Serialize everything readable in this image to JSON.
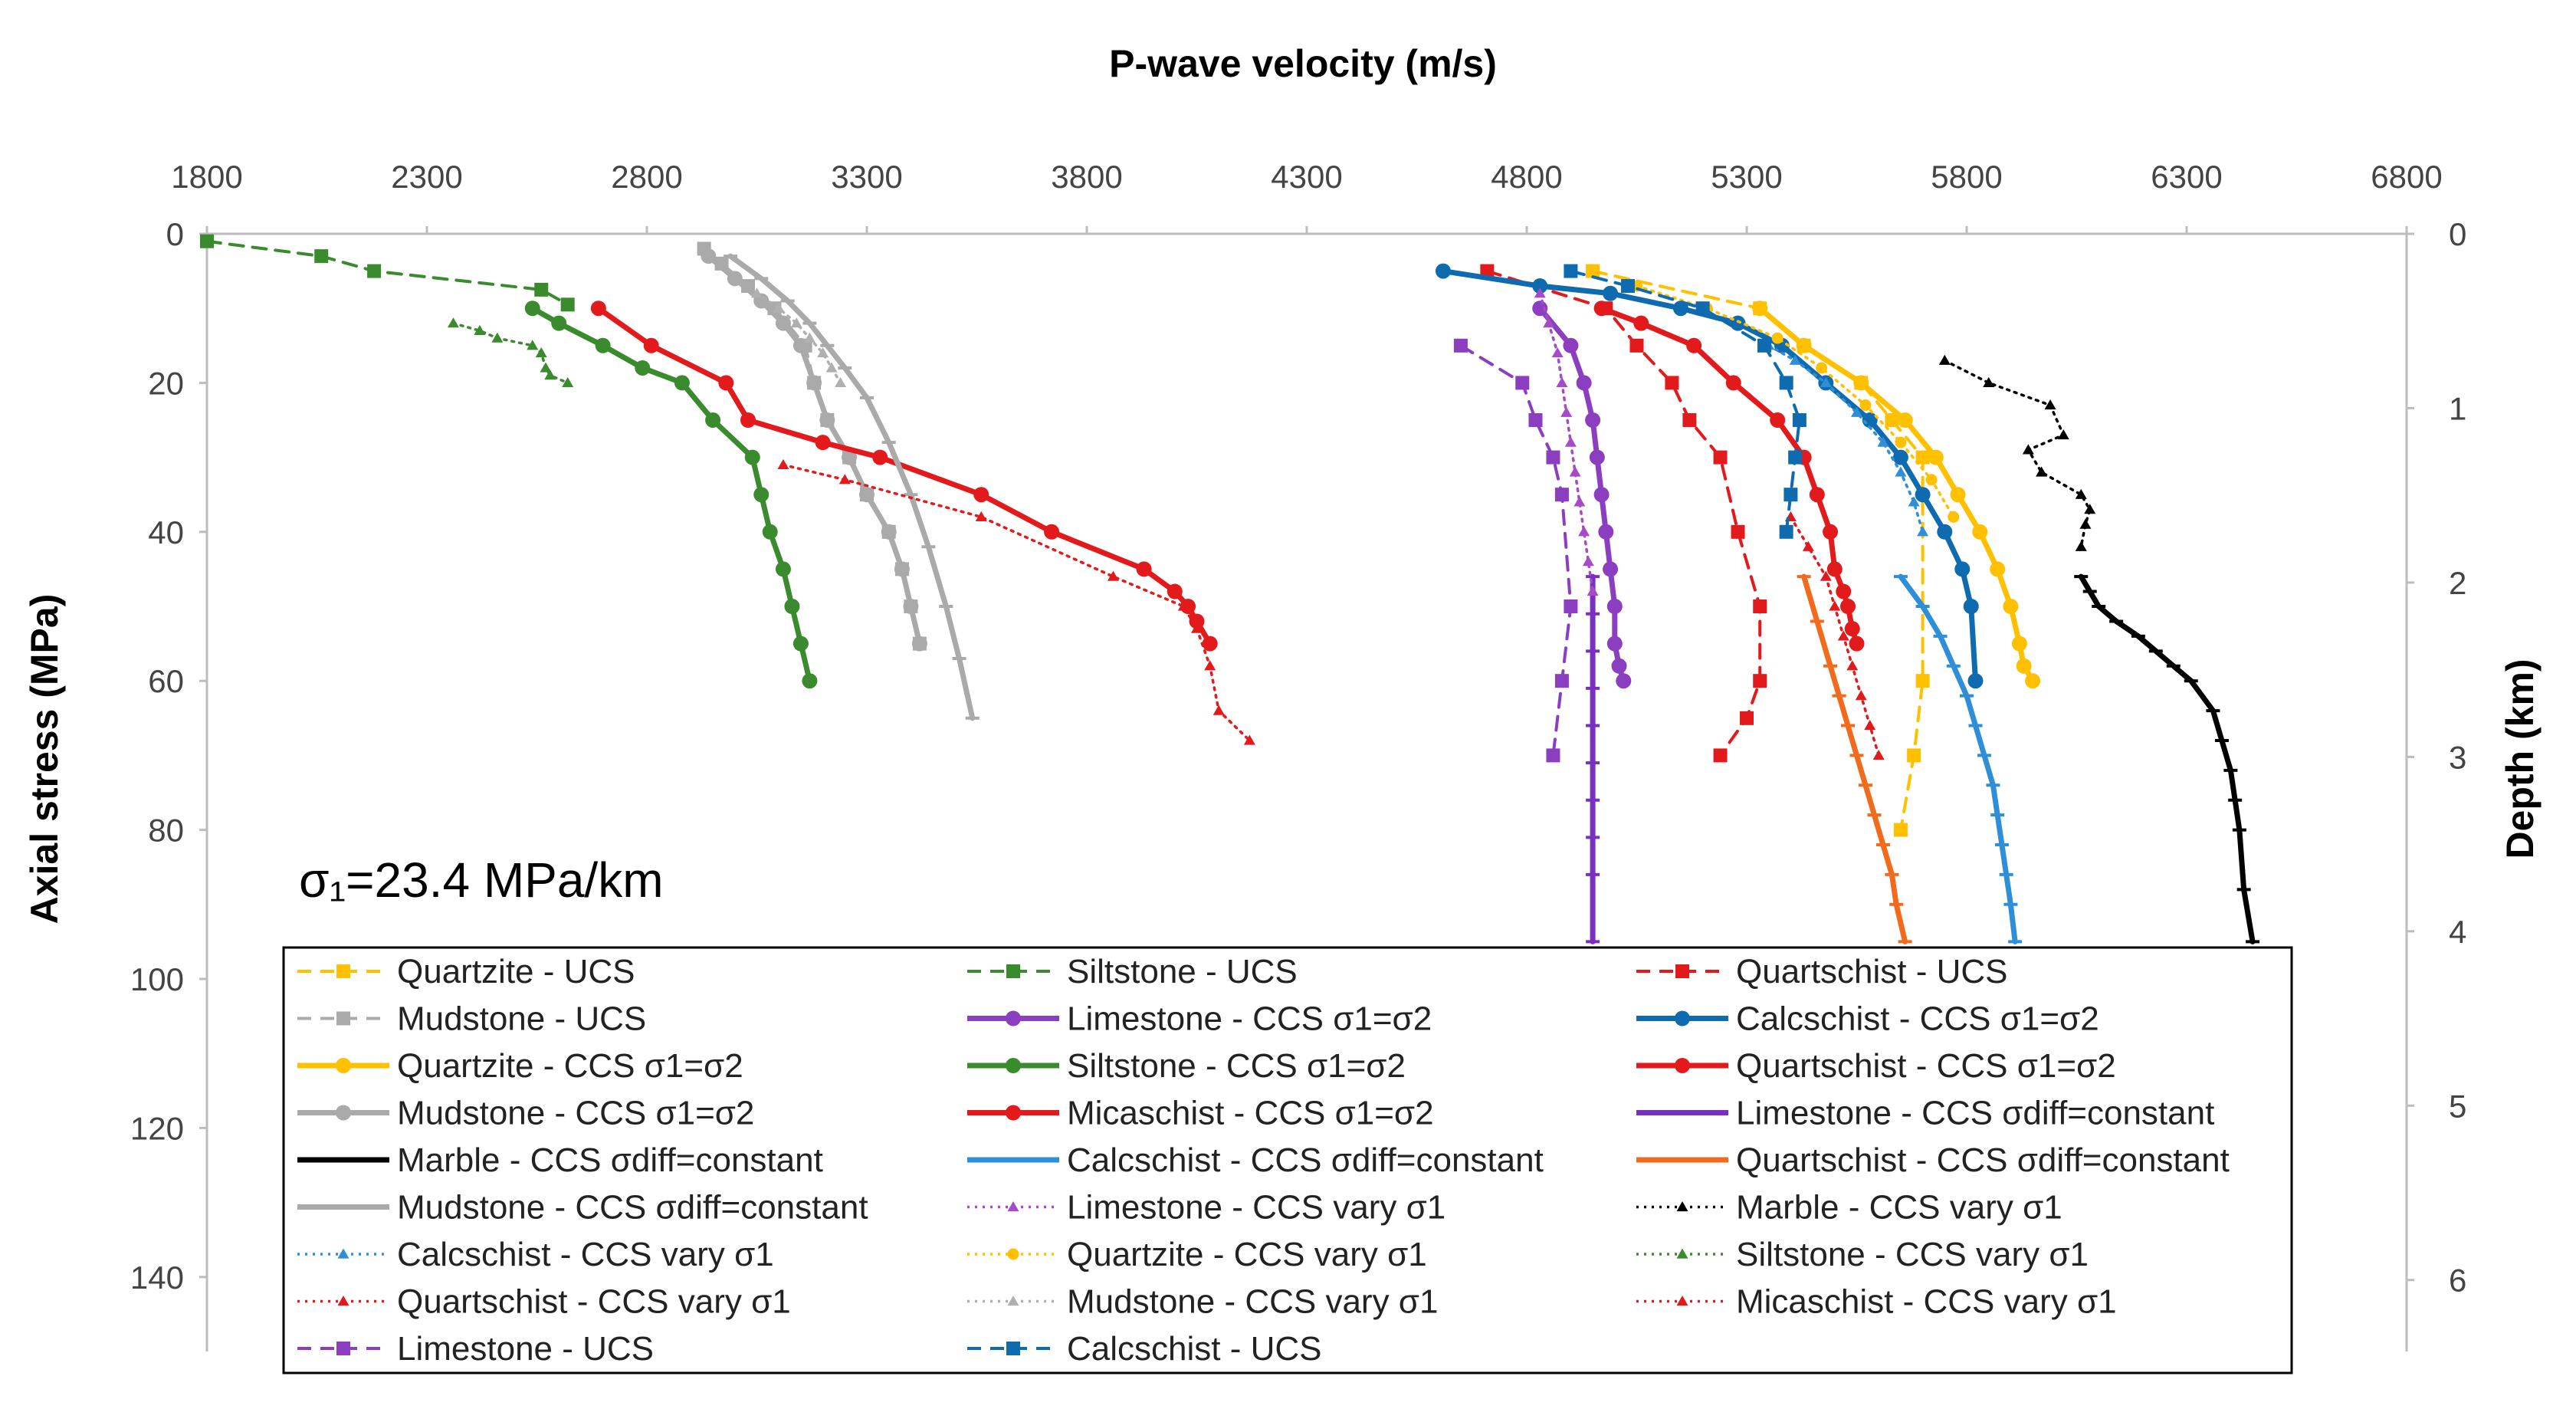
{
  "chart_data": {
    "type": "line",
    "title": "",
    "xlabel": "P-wave velocity (m/s)",
    "ylabel": "Axial stress (MPa)",
    "y2label": "Depth (km)",
    "xlim": [
      1800,
      6800
    ],
    "ylim": [
      0,
      150
    ],
    "y2lim": [
      0,
      6.41
    ],
    "x_axis_position": "top",
    "y_inverted": true,
    "grid": false,
    "x_ticks": [
      1800,
      2300,
      2800,
      3300,
      3800,
      4300,
      4800,
      5300,
      5800,
      6300,
      6800
    ],
    "y_ticks": [
      0,
      20,
      40,
      60,
      80,
      100,
      120,
      140
    ],
    "y2_ticks": [
      0,
      1,
      2,
      3,
      4,
      5,
      6
    ],
    "x_tick_labels": [
      "1800",
      "2300",
      "2800",
      "3300",
      "3800",
      "4300",
      "4800",
      "5300",
      "5800",
      "6300",
      "6800"
    ],
    "y_tick_labels": [
      "0",
      "20",
      "40",
      "60",
      "80",
      "100",
      "120",
      "140"
    ],
    "y2_tick_labels": [
      "0",
      "1",
      "2",
      "3",
      "4",
      "5",
      "6"
    ],
    "annotation": "σ₁=23.4 MPa/km",
    "legend_position": "bottom-inside",
    "series": [
      {
        "name": "Quartzite - UCS",
        "color": "#FFC000",
        "line": "dashed",
        "marker": "square",
        "width": "thin",
        "x": [
          4950,
          5330,
          5430,
          5560,
          5630,
          5700,
          5700,
          5680,
          5650
        ],
        "y": [
          5,
          10,
          15,
          20,
          25,
          30,
          60,
          70,
          80
        ]
      },
      {
        "name": "Siltstone - UCS",
        "color": "#3A8A2E",
        "line": "dashed",
        "marker": "square",
        "width": "thin",
        "x": [
          1800,
          2060,
          2180,
          2560,
          2620
        ],
        "y": [
          1,
          3,
          5,
          7.5,
          9.5
        ]
      },
      {
        "name": "Quartschist - UCS",
        "color": "#E31A1C",
        "line": "dashed",
        "marker": "square",
        "width": "thin",
        "x": [
          4710,
          4980,
          5050,
          5130,
          5170,
          5240,
          5280,
          5330,
          5330,
          5300,
          5240
        ],
        "y": [
          5,
          10,
          15,
          20,
          25,
          30,
          40,
          50,
          60,
          65,
          70
        ]
      },
      {
        "name": "Mudstone - UCS",
        "color": "#AAAAAA",
        "line": "dashed",
        "marker": "square",
        "width": "thin",
        "x": [
          2930,
          2970,
          3030,
          3090,
          3160,
          3180,
          3210,
          3260,
          3300,
          3350,
          3380,
          3400,
          3420
        ],
        "y": [
          2,
          4,
          7,
          10,
          15,
          20,
          25,
          30,
          35,
          40,
          45,
          50,
          55
        ]
      },
      {
        "name": "Limestone - CCS σ1=σ2",
        "color": "#8B3EBF",
        "line": "solid",
        "marker": "circle",
        "width": "thick",
        "x": [
          4830,
          4900,
          4930,
          4950,
          4960,
          4970,
          4980,
          4990,
          5000,
          5000,
          5010,
          5020
        ],
        "y": [
          10,
          15,
          20,
          25,
          30,
          35,
          40,
          45,
          50,
          55,
          58,
          60
        ]
      },
      {
        "name": "Calcschist - CCS σ1=σ2",
        "color": "#0E6BB0",
        "line": "solid",
        "marker": "circle",
        "width": "thick",
        "x": [
          4610,
          4830,
          4990,
          5150,
          5280,
          5380,
          5480,
          5580,
          5650,
          5700,
          5750,
          5790,
          5810,
          5820
        ],
        "y": [
          5,
          7,
          8,
          10,
          12,
          15,
          20,
          25,
          30,
          35,
          40,
          45,
          50,
          60
        ]
      },
      {
        "name": "Quartzite - CCS σ1=σ2",
        "color": "#FFC000",
        "line": "solid",
        "marker": "circle",
        "width": "thick",
        "x": [
          5330,
          5430,
          5560,
          5660,
          5730,
          5780,
          5830,
          5870,
          5900,
          5920,
          5930,
          5950
        ],
        "y": [
          10,
          15,
          20,
          25,
          30,
          35,
          40,
          45,
          50,
          55,
          58,
          60
        ]
      },
      {
        "name": "Siltstone - CCS σ1=σ2",
        "color": "#3A8A2E",
        "line": "solid",
        "marker": "circle",
        "width": "thick",
        "x": [
          2540,
          2600,
          2700,
          2790,
          2880,
          2950,
          3040,
          3060,
          3080,
          3110,
          3130,
          3150,
          3170
        ],
        "y": [
          10,
          12,
          15,
          18,
          20,
          25,
          30,
          35,
          40,
          45,
          50,
          55,
          60
        ]
      },
      {
        "name": "Quartschist - CCS σ1=σ2",
        "color": "#E31A1C",
        "line": "solid",
        "marker": "circle",
        "width": "thick",
        "x": [
          4970,
          5060,
          5180,
          5270,
          5370,
          5430,
          5460,
          5490,
          5500,
          5520,
          5530,
          5540,
          5550
        ],
        "y": [
          10,
          12,
          15,
          20,
          25,
          30,
          35,
          40,
          45,
          48,
          50,
          53,
          55
        ]
      },
      {
        "name": "Mudstone - CCS σ1=σ2",
        "color": "#AAAAAA",
        "line": "solid",
        "marker": "circle",
        "width": "thick",
        "x": [
          2940,
          3000,
          3060,
          3110,
          3150,
          3180,
          3210,
          3260,
          3300,
          3350,
          3380,
          3400,
          3420
        ],
        "y": [
          3,
          6,
          9,
          12,
          15,
          20,
          25,
          30,
          35,
          40,
          45,
          50,
          55
        ]
      },
      {
        "name": "Micaschist - CCS σ1=σ2",
        "color": "#E31A1C",
        "line": "solid",
        "marker": "circle",
        "width": "thick",
        "x": [
          2690,
          2810,
          2980,
          3030,
          3200,
          3330,
          3560,
          3720,
          3930,
          4000,
          4030,
          4050,
          4080
        ],
        "y": [
          10,
          15,
          20,
          25,
          28,
          30,
          35,
          40,
          45,
          48,
          50,
          52,
          55
        ]
      },
      {
        "name": "Limestone - CCS σdiff=constant",
        "color": "#7B2FBF",
        "line": "solid",
        "marker": "dash",
        "width": "thick",
        "x": [
          4950,
          4950,
          4950,
          4950,
          4950,
          4950,
          4950,
          4950,
          4950,
          4950
        ],
        "y": [
          46,
          51,
          56,
          61,
          66,
          71,
          76,
          81,
          86,
          95
        ]
      },
      {
        "name": "Marble - CCS σdiff=constant",
        "color": "#000000",
        "line": "solid",
        "marker": "dash",
        "width": "thick",
        "x": [
          6060,
          6080,
          6100,
          6140,
          6190,
          6230,
          6270,
          6310,
          6360,
          6380,
          6400,
          6410,
          6420,
          6430,
          6450
        ],
        "y": [
          46,
          48,
          50,
          52,
          54,
          56,
          58,
          60,
          64,
          68,
          72,
          76,
          80,
          88,
          95
        ]
      },
      {
        "name": "Calcschist - CCS σdiff=constant",
        "color": "#2E8FD8",
        "line": "solid",
        "marker": "dash",
        "width": "thick",
        "x": [
          5650,
          5700,
          5740,
          5770,
          5800,
          5820,
          5840,
          5860,
          5870,
          5880,
          5890,
          5900,
          5910
        ],
        "y": [
          46,
          50,
          54,
          58,
          62,
          66,
          70,
          74,
          78,
          82,
          86,
          90,
          95
        ]
      },
      {
        "name": "Quartschist - CCS σdiff=constant",
        "color": "#F26B1D",
        "line": "solid",
        "marker": "dash",
        "width": "thick",
        "x": [
          5430,
          5460,
          5490,
          5510,
          5530,
          5550,
          5570,
          5590,
          5610,
          5630,
          5640,
          5660
        ],
        "y": [
          46,
          52,
          58,
          62,
          66,
          70,
          74,
          78,
          82,
          86,
          90,
          95
        ]
      },
      {
        "name": "Mudstone - CCS σdiff=constant",
        "color": "#AAAAAA",
        "line": "solid",
        "marker": "dash",
        "width": "thick",
        "x": [
          2990,
          3060,
          3120,
          3170,
          3210,
          3250,
          3300,
          3350,
          3400,
          3440,
          3480,
          3510,
          3540
        ],
        "y": [
          3,
          6,
          9,
          12,
          15,
          18,
          22,
          28,
          35,
          42,
          50,
          57,
          65
        ]
      },
      {
        "name": "Limestone - CCS vary σ1",
        "color": "#A64AC9",
        "line": "dotted",
        "marker": "triangle",
        "width": "thin",
        "x": [
          4830,
          4850,
          4870,
          4880,
          4890,
          4900,
          4910,
          4920,
          4930,
          4940,
          4950
        ],
        "y": [
          8,
          12,
          16,
          20,
          24,
          28,
          32,
          36,
          40,
          44,
          48
        ]
      },
      {
        "name": "Marble - CCS vary σ1",
        "color": "#000000",
        "line": "dotted",
        "marker": "triangle",
        "width": "thin",
        "x": [
          5750,
          5850,
          5990,
          6020,
          5940,
          5970,
          6060,
          6080,
          6070,
          6060
        ],
        "y": [
          17,
          20,
          23,
          27,
          29,
          32,
          35,
          37,
          39,
          42
        ]
      },
      {
        "name": "Calcschist - CCS vary σ1",
        "color": "#2E8FD8",
        "line": "dotted",
        "marker": "triangle",
        "width": "thin",
        "x": [
          5350,
          5410,
          5480,
          5550,
          5610,
          5650,
          5680,
          5700
        ],
        "y": [
          15,
          17,
          20,
          24,
          28,
          32,
          36,
          40
        ]
      },
      {
        "name": "Quartzite - CCS vary σ1",
        "color": "#FFC000",
        "line": "dotted",
        "marker": "circle",
        "width": "thin",
        "x": [
          5050,
          5210,
          5370,
          5470,
          5570,
          5650,
          5720,
          5770
        ],
        "y": [
          7,
          10,
          14,
          18,
          23,
          28,
          33,
          38
        ]
      },
      {
        "name": "Siltstone - CCS vary σ1",
        "color": "#3A8A2E",
        "line": "dotted",
        "marker": "triangle",
        "width": "thin",
        "x": [
          2360,
          2420,
          2460,
          2540,
          2560,
          2570,
          2580,
          2620
        ],
        "y": [
          12,
          13,
          14,
          15,
          16,
          18,
          19,
          20
        ]
      },
      {
        "name": "Quartschist - CCS vary σ1",
        "color": "#E31A1C",
        "line": "dotted",
        "marker": "triangle",
        "width": "thin",
        "x": [
          5400,
          5440,
          5480,
          5500,
          5520,
          5540,
          5560,
          5580,
          5600
        ],
        "y": [
          38,
          42,
          46,
          50,
          54,
          58,
          62,
          66,
          70
        ]
      },
      {
        "name": "Mudstone - CCS vary σ1",
        "color": "#B0B0B0",
        "line": "dotted",
        "marker": "triangle",
        "width": "thin",
        "x": [
          3050,
          3100,
          3140,
          3170,
          3200,
          3220,
          3240
        ],
        "y": [
          8,
          10,
          12,
          14,
          16,
          18,
          20
        ]
      },
      {
        "name": "Micaschist - CCS vary σ1",
        "color": "#E31A1C",
        "line": "dotted",
        "marker": "triangle",
        "width": "thin",
        "x": [
          3110,
          3250,
          3560,
          3860,
          4020,
          4050,
          4080,
          4100,
          4170
        ],
        "y": [
          31,
          33,
          38,
          46,
          50,
          53,
          58,
          64,
          68
        ]
      },
      {
        "name": "Limestone - UCS",
        "color": "#8B3EBF",
        "line": "dashed",
        "marker": "square",
        "width": "thin",
        "x": [
          4650,
          4790,
          4820,
          4860,
          4880,
          4900,
          4880,
          4860
        ],
        "y": [
          15,
          20,
          25,
          30,
          35,
          50,
          60,
          70
        ]
      },
      {
        "name": "Calcschist - UCS",
        "color": "#0E6BB0",
        "line": "dashed",
        "marker": "square",
        "width": "thin",
        "x": [
          4900,
          5030,
          5200,
          5340,
          5390,
          5420,
          5410,
          5400,
          5390
        ],
        "y": [
          5,
          7,
          10,
          15,
          20,
          25,
          30,
          35,
          40
        ]
      }
    ]
  }
}
